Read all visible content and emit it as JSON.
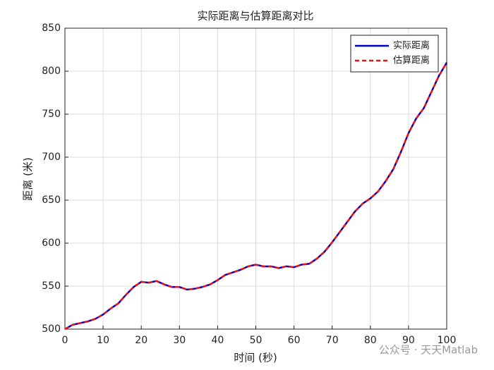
{
  "chart_data": {
    "type": "line",
    "title": "实际距离与估算距离对比",
    "x_label": "时间 (秒)",
    "y_label": "距离 (米)",
    "x": [
      0,
      2,
      4,
      6,
      8,
      10,
      12,
      14,
      16,
      18,
      20,
      22,
      24,
      26,
      28,
      30,
      32,
      34,
      36,
      38,
      40,
      42,
      44,
      46,
      48,
      50,
      52,
      54,
      56,
      58,
      60,
      62,
      64,
      66,
      68,
      70,
      72,
      74,
      76,
      78,
      80,
      82,
      84,
      86,
      88,
      90,
      92,
      94,
      96,
      98,
      100
    ],
    "series": [
      {
        "name": "实际距离",
        "color": "#0000cc",
        "dash": false,
        "values": [
          500,
          505,
          507,
          509,
          512,
          517,
          524,
          530,
          540,
          549,
          555,
          554,
          556,
          552,
          549,
          549,
          546,
          547,
          549,
          552,
          557,
          563,
          566,
          569,
          573,
          575,
          573,
          573,
          571,
          573,
          572,
          575,
          576,
          582,
          590,
          601,
          613,
          625,
          637,
          646,
          652,
          660,
          672,
          686,
          706,
          728,
          745,
          757,
          776,
          795,
          810
        ]
      },
      {
        "name": "估算距离",
        "color": "#ee1111",
        "dash": true,
        "values": [
          500,
          505,
          507,
          509,
          512,
          517,
          524,
          530,
          540,
          549,
          555,
          554,
          556,
          552,
          549,
          549,
          546,
          547,
          549,
          552,
          557,
          563,
          566,
          569,
          573,
          575,
          573,
          573,
          571,
          573,
          572,
          575,
          576,
          582,
          590,
          601,
          613,
          625,
          637,
          646,
          652,
          660,
          672,
          686,
          706,
          728,
          745,
          757,
          776,
          795,
          810
        ]
      }
    ],
    "xlim": [
      0,
      100
    ],
    "xticks": [
      0,
      10,
      20,
      30,
      40,
      50,
      60,
      70,
      80,
      90,
      100
    ],
    "ylim": [
      500,
      850
    ],
    "yticks": [
      500,
      550,
      600,
      650,
      700,
      750,
      800,
      850
    ],
    "grid": true,
    "legend": "northeast"
  },
  "watermark": "公众号 · 天天Matlab"
}
